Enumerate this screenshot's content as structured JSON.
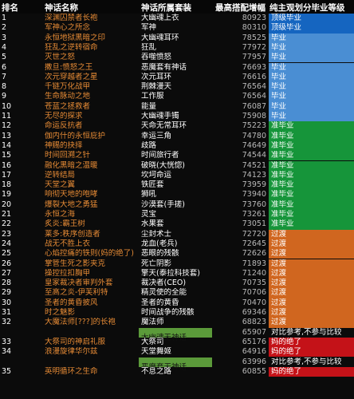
{
  "headers": {
    "rank": "排名",
    "name": "神话名称",
    "gear": "神话所属套装",
    "max": "最高搭配增幅",
    "grade": "纯主观划分毕业等级"
  },
  "tier_colors": {
    "顶级毕业": "#1565c0",
    "毕业": "#4a8ed3",
    "准毕业": "#16953a",
    "过渡": "#d0661f",
    "对比参考,不参与比较": "#0b0b0b",
    "妈的绝了": "#c41218"
  },
  "rows": [
    {
      "rank": "1",
      "name": "深渊囚禁者长袍",
      "gear": "大幽魂上衣",
      "value": "80923",
      "grade": "顶级毕业"
    },
    {
      "rank": "2",
      "name": "军神心之所念",
      "gear": "军神",
      "value": "80310",
      "grade": "顶级毕业"
    },
    {
      "rank": "3",
      "name": "永恒地狱黑暗之印",
      "gear": "大幽魂耳环",
      "value": "78525",
      "grade": "毕业"
    },
    {
      "rank": "4",
      "name": "狂乱之逆转宿命",
      "gear": "狂乱",
      "value": "77972",
      "grade": "毕业"
    },
    {
      "rank": "5",
      "name": "灭世之怒",
      "gear": "吞噬愤怒",
      "value": "77957",
      "grade": "毕业"
    },
    {
      "rank": "6",
      "name": "撒旦:愤怒之王",
      "gear": "恶魔套有神话",
      "value": "76693",
      "grade": "毕业"
    },
    {
      "rank": "7",
      "name": "次元穿越者之星",
      "gear": "次元耳环",
      "value": "76616",
      "grade": "毕业"
    },
    {
      "rank": "8",
      "name": "千链万化战甲",
      "gear": "荆棘漫天",
      "value": "76564",
      "grade": "毕业"
    },
    {
      "rank": "9",
      "name": "生命脉动之地",
      "gear": "工作服",
      "value": "76564",
      "grade": "毕业"
    },
    {
      "rank": "10",
      "name": "苍蓝之拯救者",
      "gear": "能量",
      "value": "76087",
      "grade": "毕业"
    },
    {
      "rank": "11",
      "name": "无尽的探求",
      "gear": "大幽魂手镯",
      "value": "75908",
      "grade": "毕业"
    },
    {
      "rank": "12",
      "name": "命运反抗者",
      "gear": "天命无常耳环",
      "value": "75223",
      "grade": "准毕业"
    },
    {
      "rank": "13",
      "name": "伽内什的永恒庇护",
      "gear": "幸运三角",
      "value": "74780",
      "grade": "准毕业"
    },
    {
      "rank": "14",
      "name": "神赐的抉择",
      "gear": "歧路",
      "value": "74649",
      "grade": "准毕业"
    },
    {
      "rank": "15",
      "name": "时间回溯之针",
      "gear": "时间旅行者",
      "value": "74544",
      "grade": "准毕业"
    },
    {
      "rank": "16",
      "name": "融化黑暗之温暖",
      "gear": "破晓(大恍惚)",
      "value": "74521",
      "grade": "准毕业"
    },
    {
      "rank": "17",
      "name": "逆转结局",
      "gear": "坎坷命运",
      "value": "74123",
      "grade": "准毕业"
    },
    {
      "rank": "18",
      "name": "天堂之翼",
      "gear": "铁匠套",
      "value": "73959",
      "grade": "准毕业"
    },
    {
      "rank": "19",
      "name": "响彻天地的咆哮",
      "gear": "狮吼",
      "value": "73940",
      "grade": "准毕业"
    },
    {
      "rank": "20",
      "name": "爆裂大地之勇猛",
      "gear": "沙漠套(手搓)",
      "value": "73760",
      "grade": "准毕业"
    },
    {
      "rank": "21",
      "name": "永恒之海",
      "gear": "灵宝",
      "value": "73261",
      "grade": "准毕业"
    },
    {
      "rank": "22",
      "name": "炙炎:霸王树",
      "gear": "水果套",
      "value": "73051",
      "grade": "准毕业"
    },
    {
      "rank": "23",
      "name": "莱多:秩序创造者",
      "gear": "尘封术士",
      "value": "72720",
      "grade": "过渡"
    },
    {
      "rank": "24",
      "name": "战无不胜上衣",
      "gear": "龙血(老兵)",
      "value": "72645",
      "grade": "过渡"
    },
    {
      "rank": "25",
      "name": "心焰控痛的铁则(妈的绝了)",
      "gear": "恶眼的残骸",
      "value": "72626",
      "grade": "过渡"
    },
    {
      "rank": "26",
      "name": "掌管生死之影夹克",
      "gear": "死亡阴影",
      "value": "71893",
      "grade": "过渡"
    },
    {
      "rank": "27",
      "name": "操控拉扣胸甲",
      "gear": "擎天(泰拉科技套)",
      "value": "71240",
      "grade": "过渡"
    },
    {
      "rank": "28",
      "name": "皇家裁决者审判外套",
      "gear": "裁决者(CEO)",
      "value": "70735",
      "grade": "过渡"
    },
    {
      "rank": "29",
      "name": "至高之炎-伊芙利特",
      "gear": "精灵使的全能",
      "value": "70706",
      "grade": "过渡"
    },
    {
      "rank": "30",
      "name": "圣者的黄昏披风",
      "gear": "圣者的黄昏",
      "value": "70470",
      "grade": "过渡"
    },
    {
      "rank": "31",
      "name": "时之魅影",
      "gear": "时间战争的残骸",
      "value": "69346",
      "grade": "过渡"
    },
    {
      "rank": "32",
      "name": "大魔法师[???]的长袍",
      "gear": "魔法师",
      "value": "68823",
      "grade": "过渡"
    },
    {
      "rank": "",
      "name": "",
      "gear": "大幽魂无神话",
      "value": "65907",
      "grade": "对比参考,不参与比较",
      "gear_box": true
    },
    {
      "rank": "33",
      "name": "大祭司的神启礼服",
      "gear": "大祭司",
      "value": "65176",
      "grade": "妈的绝了"
    },
    {
      "rank": "34",
      "name": "浪漫旋律华尔兹",
      "gear": "天堂舞姬",
      "value": "64916",
      "grade": "妈的绝了"
    },
    {
      "rank": "",
      "name": "",
      "gear": "恶魔套无神话",
      "value": "63996",
      "grade": "对比参考,不参与比较",
      "gear_box": true
    },
    {
      "rank": "35",
      "name": "英明循环之生命",
      "gear": "不息之路",
      "value": "60855",
      "grade": "妈的绝了"
    }
  ]
}
